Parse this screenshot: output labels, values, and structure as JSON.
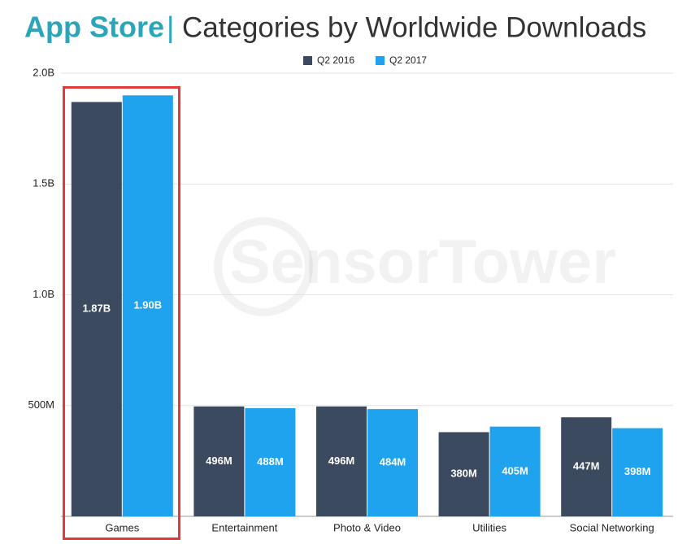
{
  "chart_data": {
    "type": "bar",
    "title_parts": [
      "App Store",
      "|",
      "Categories by Worldwide Downloads"
    ],
    "watermark": "SensorTower",
    "categories": [
      "Games",
      "Entertainment",
      "Photo & Video",
      "Utilities",
      "Social Networking"
    ],
    "series": [
      {
        "name": "Q2 2016",
        "color": "#3c4a5f",
        "values": [
          1870000000,
          496000000,
          496000000,
          380000000,
          447000000
        ],
        "value_labels": [
          "1.87B",
          "496M",
          "496M",
          "380M",
          "447M"
        ]
      },
      {
        "name": "Q2 2017",
        "color": "#1fa3ef",
        "values": [
          1900000000,
          488000000,
          484000000,
          405000000,
          398000000
        ],
        "value_labels": [
          "1.90B",
          "488M",
          "484M",
          "405M",
          "398M"
        ]
      }
    ],
    "ylim": [
      0,
      2000000000
    ],
    "yticks": [
      {
        "value": 500000000,
        "label": "500M"
      },
      {
        "value": 1000000000,
        "label": "1.0B"
      },
      {
        "value": 1500000000,
        "label": "1.5B"
      },
      {
        "value": 2000000000,
        "label": "2.0B"
      }
    ],
    "grid": true,
    "legend": "top"
  }
}
